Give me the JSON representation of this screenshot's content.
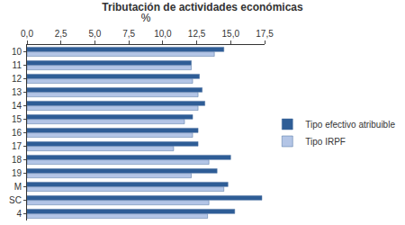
{
  "chart_data": {
    "type": "bar",
    "orientation": "horizontal",
    "title": "Tributación de actividades económicas",
    "x_label": "%",
    "categories": [
      "10",
      "11",
      "12",
      "13",
      "14",
      "15",
      "16",
      "17",
      "18",
      "19",
      "M",
      "SC",
      "4"
    ],
    "series": [
      {
        "name": "Tipo efectivo atribuible",
        "color": "#2e5d96",
        "values": [
          14.5,
          12.1,
          12.7,
          12.9,
          13.1,
          12.2,
          12.6,
          12.6,
          15.0,
          14.0,
          14.8,
          17.3,
          15.3
        ]
      },
      {
        "name": "Tipo IRPF",
        "color": "#b3c5e6",
        "values": [
          13.8,
          12.1,
          12.2,
          12.6,
          12.6,
          11.6,
          12.2,
          10.8,
          13.4,
          12.1,
          14.5,
          13.4,
          13.3
        ]
      }
    ],
    "xlim": [
      0,
      17.5
    ],
    "xticks": [
      {
        "value": 0,
        "label": "0,0"
      },
      {
        "value": 2.5,
        "label": "2,5"
      },
      {
        "value": 5,
        "label": "5,0"
      },
      {
        "value": 7.5,
        "label": "7,5"
      },
      {
        "value": 10,
        "label": "10,0"
      },
      {
        "value": 12.5,
        "label": "12,5"
      },
      {
        "value": 15,
        "label": "15,0"
      },
      {
        "value": 17.5,
        "label": "17,5"
      }
    ],
    "grid": false,
    "legend": "right"
  }
}
